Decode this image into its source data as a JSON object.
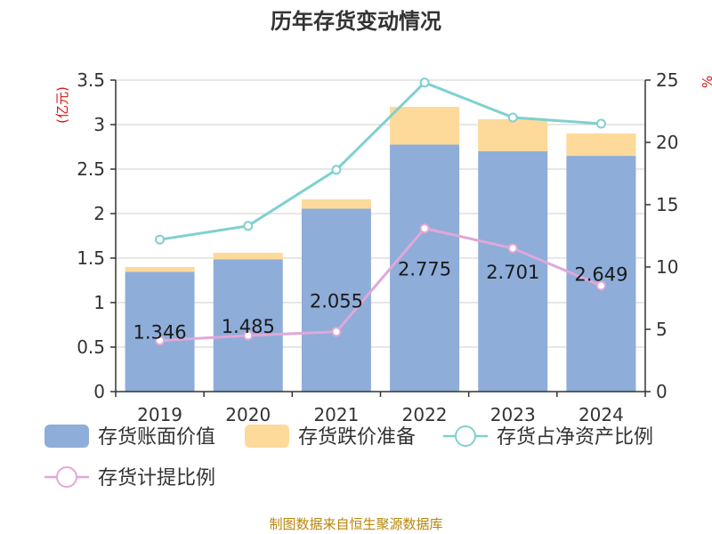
{
  "chart_data": {
    "type": "bar",
    "title": "历年存货变动情况",
    "categories": [
      "2019",
      "2020",
      "2021",
      "2022",
      "2023",
      "2024"
    ],
    "y_left": {
      "unit_label": "(亿元)",
      "range": [
        0,
        3.5
      ],
      "ticks": [
        "0",
        "0.5",
        "1",
        "1.5",
        "2",
        "2.5",
        "3",
        "3.5"
      ]
    },
    "y_right": {
      "unit_label": "%",
      "range": [
        0,
        25
      ],
      "ticks": [
        "0",
        "5",
        "10",
        "15",
        "20",
        "25"
      ]
    },
    "bar_series": [
      {
        "name": "存货账面价值",
        "color": "#8eadd9",
        "values": [
          1.346,
          1.485,
          2.055,
          2.775,
          2.701,
          2.649
        ],
        "labels": [
          "1.346",
          "1.485",
          "2.055",
          "2.775",
          "2.701",
          "2.649"
        ]
      },
      {
        "name": "存货跌价准备",
        "color": "#fdd99a",
        "values": [
          0.054,
          0.075,
          0.105,
          0.425,
          0.359,
          0.251
        ]
      }
    ],
    "line_series": [
      {
        "name": "存货占净资产比例",
        "color": "#80d0d0",
        "values": [
          12.2,
          13.3,
          17.8,
          24.8,
          22.0,
          21.5
        ]
      },
      {
        "name": "存货计提比例",
        "color": "#e0a8d8",
        "values": [
          4.1,
          4.5,
          4.8,
          13.1,
          11.5,
          8.5
        ]
      }
    ],
    "grid": true,
    "legend_position": "bottom"
  },
  "source": "制图数据来自恒生聚源数据库"
}
